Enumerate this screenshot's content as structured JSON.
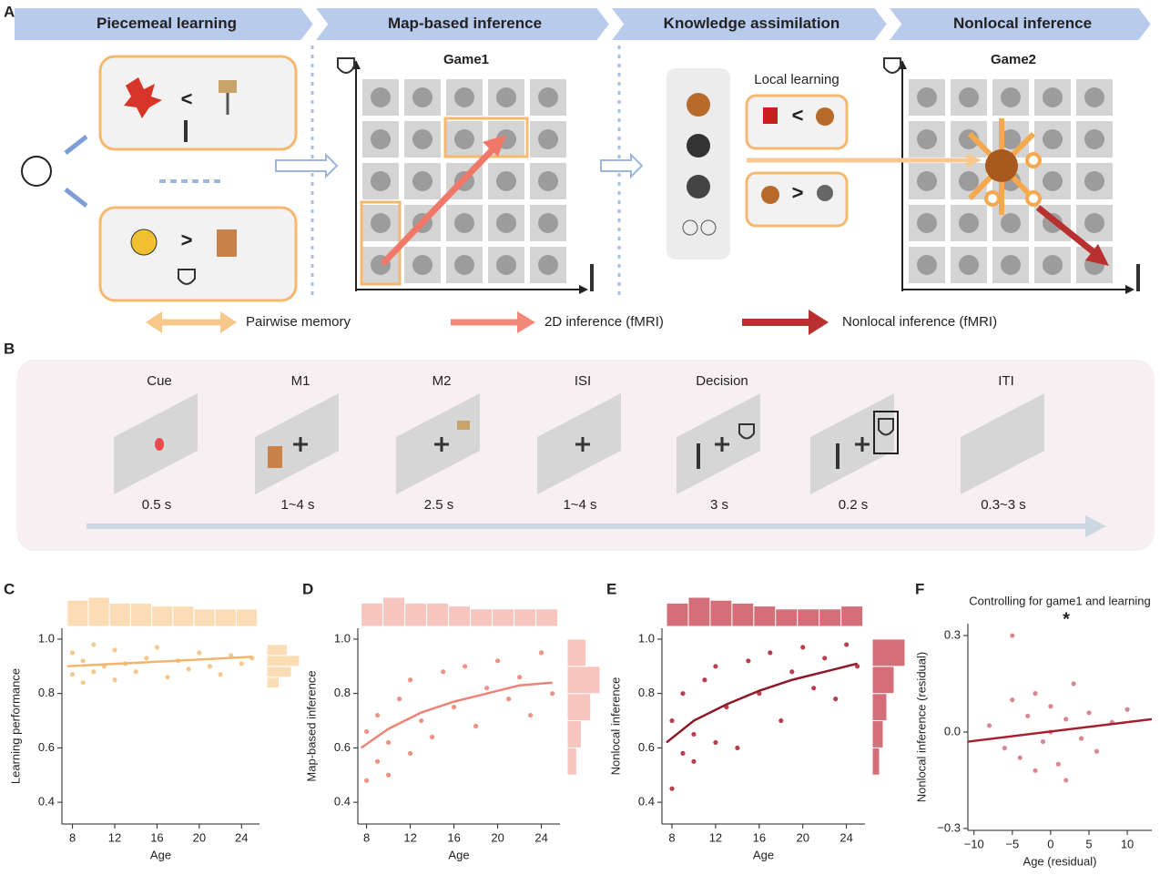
{
  "stages": [
    "Piecemeal learning",
    "Map-based inference",
    "Knowledge assimilation",
    "Nonlocal inference"
  ],
  "panel_labels": [
    "A",
    "B",
    "C",
    "D",
    "E",
    "F"
  ],
  "games": [
    "Game1",
    "Game2"
  ],
  "pairwise": [
    "<",
    ">"
  ],
  "local_learning": {
    "title": "Local learning",
    "comparisons": [
      "<",
      ">"
    ]
  },
  "legend": [
    "Pairwise memory",
    "2D inference (fMRI)",
    "Nonlocal inference (fMRI)"
  ],
  "timeline": [
    {
      "label": "Cue",
      "duration": "0.5 s"
    },
    {
      "label": "M1",
      "duration": "1~4 s"
    },
    {
      "label": "M2",
      "duration": "2.5 s"
    },
    {
      "label": "ISI",
      "duration": "1~4 s"
    },
    {
      "label": "Decision",
      "duration": "3 s"
    },
    {
      "duration": "0.2 s"
    },
    {
      "label": "ITI",
      "duration": "0.3~3 s"
    }
  ],
  "chart_data": [
    {
      "type": "scatter",
      "xlabel": "Age",
      "ylabel": "Learning performance",
      "color": "#f6c88e",
      "xlim": [
        7,
        25.7
      ],
      "ylim": [
        0.32,
        1.04
      ],
      "xticks": [
        8,
        12,
        16,
        20,
        24
      ],
      "yticks": [
        0.4,
        0.6,
        0.8,
        {
          "value": 1,
          "label": "1.0"
        }
      ],
      "x": [
        8,
        8,
        9,
        9,
        10,
        10,
        11,
        12,
        12,
        13,
        14,
        15,
        16,
        17,
        18,
        19,
        20,
        21,
        22,
        23,
        24,
        25
      ],
      "y": [
        0.87,
        0.95,
        0.84,
        0.92,
        0.98,
        0.88,
        0.9,
        0.85,
        0.96,
        0.91,
        0.88,
        0.93,
        0.97,
        0.86,
        0.92,
        0.89,
        0.95,
        0.9,
        0.87,
        0.94,
        0.91,
        0.93
      ],
      "fit": {
        "x": [
          7.5,
          25
        ],
        "y": [
          0.9,
          0.935
        ],
        "color": "#f2b56e"
      },
      "top_hist": {
        "bins": [
          7.5,
          9.5,
          11.5,
          13.5,
          15.5,
          17.5,
          19.5,
          21.5,
          23.5,
          25.5
        ],
        "counts": [
          9,
          10,
          8,
          8,
          7,
          7,
          6,
          6,
          6
        ],
        "color": "#fbdcb4"
      },
      "right_hist": {
        "bins": [
          0.82,
          0.86,
          0.9,
          0.94,
          0.98
        ],
        "counts": [
          3,
          6,
          8,
          5
        ],
        "color": "#fbdcb4"
      }
    },
    {
      "type": "scatter",
      "xlabel": "Age",
      "ylabel": "Map-based inference",
      "color": "#ef9185",
      "xlim": [
        7.2,
        25.7
      ],
      "ylim": [
        0.32,
        1.04
      ],
      "xticks": [
        8,
        12,
        16,
        20,
        24
      ],
      "yticks": [
        0.4,
        0.6,
        0.8,
        {
          "value": 1,
          "label": "1.0"
        }
      ],
      "x": [
        8,
        8,
        9,
        9,
        10,
        10,
        11,
        12,
        12,
        13,
        14,
        15,
        16,
        17,
        18,
        19,
        20,
        21,
        22,
        23,
        24,
        25
      ],
      "y": [
        0.48,
        0.66,
        0.55,
        0.72,
        0.62,
        0.5,
        0.78,
        0.58,
        0.85,
        0.7,
        0.64,
        0.88,
        0.75,
        0.9,
        0.68,
        0.82,
        0.92,
        0.78,
        0.86,
        0.72,
        0.95,
        0.8
      ],
      "fit": {
        "x": [
          7.5,
          10,
          13,
          16,
          19,
          22,
          25
        ],
        "y": [
          0.6,
          0.67,
          0.73,
          0.77,
          0.8,
          0.83,
          0.84
        ],
        "color": "#ec8478"
      },
      "top_hist": {
        "bins": [
          7.5,
          9.5,
          11.5,
          13.5,
          15.5,
          17.5,
          19.5,
          21.5,
          23.5,
          25.5
        ],
        "counts": [
          8,
          10,
          8,
          8,
          7,
          6,
          6,
          6,
          6
        ],
        "color": "#f8c4be"
      },
      "right_hist": {
        "bins": [
          0.5,
          0.6,
          0.7,
          0.8,
          0.9,
          1.0
        ],
        "counts": [
          2,
          3,
          5,
          7,
          4
        ],
        "color": "#f8c4be"
      }
    },
    {
      "type": "scatter",
      "xlabel": "Age",
      "ylabel": "Nonlocal inference",
      "color": "#b8404e",
      "xlim": [
        7.08,
        25.7
      ],
      "ylim": [
        0.32,
        1.04
      ],
      "xticks": [
        8,
        12,
        16,
        20,
        24
      ],
      "yticks": [
        0.4,
        0.6,
        0.8,
        {
          "value": 1,
          "label": "1.0"
        }
      ],
      "x": [
        8,
        8,
        9,
        9,
        10,
        10,
        11,
        12,
        12,
        13,
        14,
        15,
        16,
        17,
        18,
        19,
        20,
        21,
        22,
        23,
        24,
        25
      ],
      "y": [
        0.45,
        0.7,
        0.58,
        0.8,
        0.65,
        0.55,
        0.85,
        0.62,
        0.9,
        0.75,
        0.6,
        0.92,
        0.8,
        0.95,
        0.7,
        0.88,
        0.97,
        0.82,
        0.93,
        0.78,
        0.98,
        0.9
      ],
      "fit": {
        "x": [
          7.5,
          10,
          13,
          16,
          19,
          22,
          25
        ],
        "y": [
          0.62,
          0.7,
          0.76,
          0.81,
          0.85,
          0.88,
          0.91
        ],
        "color": "#8e1826"
      },
      "top_hist": {
        "bins": [
          7.5,
          9.5,
          11.5,
          13.5,
          15.5,
          17.5,
          19.5,
          21.5,
          23.5,
          25.5
        ],
        "counts": [
          8,
          10,
          9,
          8,
          7,
          6,
          6,
          6,
          7
        ],
        "color": "#d46e78"
      },
      "right_hist": {
        "bins": [
          0.5,
          0.6,
          0.7,
          0.8,
          0.9,
          1.0
        ],
        "counts": [
          2,
          3,
          4,
          6,
          9
        ],
        "color": "#d46e78"
      }
    },
    {
      "type": "scatter",
      "title": "Controlling for game1 and learning",
      "annotation": "*",
      "xlabel": "Age (residual)",
      "ylabel": "Nonlocal inference (residual)",
      "color": "#d88890",
      "xlim": [
        -10.8,
        13.2
      ],
      "ylim": [
        -0.306,
        0.337
      ],
      "xticks": [
        {
          "value": -10,
          "label": "−10"
        },
        {
          "value": -5,
          "label": "−5"
        },
        0,
        5,
        10
      ],
      "yticks": [
        {
          "value": -0.3,
          "label": "−0.3"
        },
        {
          "value": 0,
          "label": "0.0"
        },
        0.3
      ],
      "x": [
        -8,
        -6,
        -5,
        -4,
        -3,
        -2,
        -1,
        0,
        0,
        1,
        2,
        3,
        4,
        5,
        6,
        8,
        10,
        -5,
        2,
        -2
      ],
      "y": [
        0.02,
        -0.05,
        0.1,
        -0.08,
        0.05,
        0.12,
        -0.03,
        0.0,
        0.08,
        -0.1,
        0.04,
        0.15,
        -0.02,
        0.06,
        -0.06,
        0.03,
        0.07,
        0.3,
        -0.15,
        -0.12
      ],
      "fit": {
        "x": [
          -10.8,
          13.2
        ],
        "y": [
          -0.03,
          0.04
        ],
        "color": "#a82030"
      }
    }
  ]
}
